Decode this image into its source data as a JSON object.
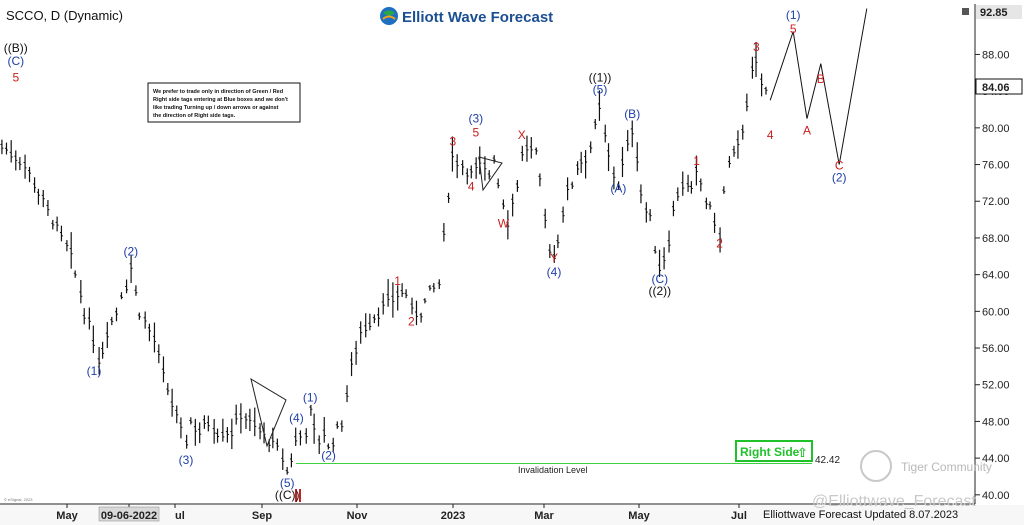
{
  "header": {
    "symbol": "SCCO, D (Dynamic)"
  },
  "brand": {
    "name": "Elliott Wave Forecast"
  },
  "note": {
    "lines": [
      "We prefer to trade only in direction of Green / Red",
      "Right side tags entering at Blue boxes and we don't",
      "like trading Turning up / down arrows or against",
      "the direction of Right side tags."
    ]
  },
  "price_tags": {
    "high": "92.85",
    "last": "84.06",
    "invalidation": "42.42"
  },
  "invalidation_label": "Invalidation Level",
  "right_side": {
    "label": "Right Side",
    "arrow": "⇧"
  },
  "footer": {
    "updated": "Elliottwave Forecast Updated 8.07.2023",
    "watermark": "@Elliottwave_Forecast",
    "community": "Tiger Community",
    "esignal": "© eSignal, 2023"
  },
  "colors": {
    "blue": "#1f3fa8",
    "red": "#c8201e",
    "green": "#1fc22a",
    "price": "#111111"
  },
  "chart_data": {
    "type": "ohlc-bar",
    "ylim": [
      39.0,
      93.5
    ],
    "yticks": [
      "40.00",
      "44.00",
      "48.00",
      "52.00",
      "56.00",
      "60.00",
      "64.00",
      "68.00",
      "72.00",
      "76.00",
      "80.00",
      "84.00",
      "88.00"
    ],
    "xticks": [
      "May",
      "09-06-2022",
      "ul",
      "Sep",
      "Nov",
      "2023",
      "Mar",
      "May",
      "Jul"
    ],
    "path": [
      [
        0,
        78
      ],
      [
        3,
        77
      ],
      [
        5,
        76
      ],
      [
        6,
        75
      ],
      [
        8,
        73
      ],
      [
        9,
        72
      ],
      [
        11,
        70
      ],
      [
        12,
        69
      ],
      [
        13,
        68
      ],
      [
        15,
        66
      ],
      [
        16,
        64
      ],
      [
        18,
        60
      ],
      [
        20,
        57
      ],
      [
        21,
        55
      ],
      [
        22,
        56
      ],
      [
        23,
        58
      ],
      [
        25,
        60
      ],
      [
        26,
        62
      ],
      [
        27,
        63
      ],
      [
        28,
        65
      ],
      [
        29,
        62
      ],
      [
        30,
        60
      ],
      [
        31,
        59
      ],
      [
        33,
        57
      ],
      [
        35,
        53
      ],
      [
        37,
        50
      ],
      [
        39,
        47
      ],
      [
        40,
        46
      ],
      [
        41,
        48
      ],
      [
        43,
        47
      ],
      [
        45,
        48
      ],
      [
        47,
        47
      ],
      [
        50,
        47
      ],
      [
        52,
        49
      ],
      [
        54,
        48
      ],
      [
        56,
        47
      ],
      [
        58,
        46
      ],
      [
        60,
        45
      ],
      [
        61,
        44
      ],
      [
        62,
        42.5
      ],
      [
        63,
        44
      ],
      [
        64,
        46
      ],
      [
        66,
        47
      ],
      [
        67,
        49
      ],
      [
        68,
        47
      ],
      [
        69,
        46
      ],
      [
        70,
        47
      ],
      [
        71,
        45
      ],
      [
        72,
        46
      ],
      [
        73,
        47
      ],
      [
        74,
        48
      ],
      [
        75,
        51
      ],
      [
        76,
        54
      ],
      [
        77,
        56
      ],
      [
        78,
        58
      ],
      [
        80,
        59
      ],
      [
        82,
        60
      ],
      [
        84,
        61
      ],
      [
        86,
        62
      ],
      [
        88,
        62
      ],
      [
        89,
        60
      ],
      [
        91,
        60
      ],
      [
        93,
        62
      ],
      [
        95,
        63
      ],
      [
        96,
        68
      ],
      [
        97,
        73
      ],
      [
        98,
        77
      ],
      [
        100,
        76
      ],
      [
        102,
        75
      ],
      [
        104,
        76
      ],
      [
        106,
        75
      ],
      [
        107,
        77
      ],
      [
        108,
        74
      ],
      [
        109,
        72
      ],
      [
        110,
        70
      ],
      [
        111,
        72
      ],
      [
        112,
        74
      ],
      [
        113,
        77
      ],
      [
        114,
        78
      ],
      [
        116,
        77
      ],
      [
        117,
        74
      ],
      [
        118,
        70
      ],
      [
        119,
        67
      ],
      [
        120,
        66
      ],
      [
        121,
        68
      ],
      [
        122,
        71
      ],
      [
        123,
        73
      ],
      [
        124,
        74
      ],
      [
        125,
        76
      ],
      [
        127,
        77
      ],
      [
        128,
        78
      ],
      [
        129,
        80
      ],
      [
        130,
        82
      ],
      [
        131,
        79
      ],
      [
        132,
        77
      ],
      [
        133,
        75
      ],
      [
        134,
        74
      ],
      [
        135,
        76
      ],
      [
        136,
        78
      ],
      [
        137,
        80
      ],
      [
        138,
        77
      ],
      [
        139,
        73
      ],
      [
        140,
        71
      ],
      [
        141,
        70
      ],
      [
        142,
        67
      ],
      [
        143,
        65
      ],
      [
        144,
        66
      ],
      [
        145,
        68
      ],
      [
        146,
        71
      ],
      [
        147,
        73
      ],
      [
        148,
        74
      ],
      [
        150,
        73
      ],
      [
        151,
        75
      ],
      [
        152,
        74
      ],
      [
        153,
        72
      ],
      [
        154,
        71
      ],
      [
        155,
        70
      ],
      [
        156,
        68
      ],
      [
        157,
        73
      ],
      [
        158,
        76
      ],
      [
        159,
        77
      ],
      [
        160,
        78
      ],
      [
        161,
        80
      ],
      [
        162,
        83
      ],
      [
        163,
        86
      ],
      [
        164,
        87
      ],
      [
        165,
        85
      ],
      [
        166,
        84
      ],
      [
        167,
        83
      ]
    ],
    "waves": [
      {
        "t": "((B))",
        "i": 3,
        "p": 88.7,
        "c": "black"
      },
      {
        "t": "(C)",
        "i": 3,
        "p": 87.3,
        "c": "blue"
      },
      {
        "t": "5",
        "i": 3,
        "p": 85.5,
        "c": "red"
      },
      {
        "t": "(2)",
        "i": 28,
        "p": 66.5,
        "c": "blue"
      },
      {
        "t": "(1)",
        "i": 20,
        "p": 53.5,
        "c": "blue"
      },
      {
        "t": "(3)",
        "i": 40,
        "p": 43.8,
        "c": "blue"
      },
      {
        "t": "(4)",
        "i": 64,
        "p": 48.4,
        "c": "blue"
      },
      {
        "t": "(5)",
        "i": 62,
        "p": 41.3,
        "c": "blue"
      },
      {
        "t": "((C))",
        "i": 62,
        "p": 40.0,
        "c": "black"
      },
      {
        "t": "(1)",
        "i": 67,
        "p": 50.6,
        "c": "blue"
      },
      {
        "t": "(2)",
        "i": 71,
        "p": 44.3,
        "c": "blue"
      },
      {
        "t": "1",
        "i": 86,
        "p": 63.3,
        "c": "red"
      },
      {
        "t": "2",
        "i": 89,
        "p": 58.9,
        "c": "red"
      },
      {
        "t": "3",
        "i": 98,
        "p": 78.5,
        "c": "red"
      },
      {
        "t": "5",
        "i": 103,
        "p": 79.5,
        "c": "red"
      },
      {
        "t": "(3)",
        "i": 103,
        "p": 81.0,
        "c": "blue"
      },
      {
        "t": "4",
        "i": 102,
        "p": 73.6,
        "c": "red"
      },
      {
        "t": "W",
        "i": 109,
        "p": 69.6,
        "c": "red"
      },
      {
        "t": "X",
        "i": 113,
        "p": 79.2,
        "c": "red"
      },
      {
        "t": "Y",
        "i": 120,
        "p": 65.8,
        "c": "red"
      },
      {
        "t": "(4)",
        "i": 120,
        "p": 64.3,
        "c": "blue"
      },
      {
        "t": "((1))",
        "i": 130,
        "p": 85.5,
        "c": "black"
      },
      {
        "t": "(5)",
        "i": 130,
        "p": 84.2,
        "c": "blue"
      },
      {
        "t": "(B)",
        "i": 137,
        "p": 81.5,
        "c": "blue"
      },
      {
        "t": "(A)",
        "i": 134,
        "p": 73.4,
        "c": "blue"
      },
      {
        "t": "(C)",
        "i": 143,
        "p": 63.5,
        "c": "blue"
      },
      {
        "t": "((2))",
        "i": 143,
        "p": 62.2,
        "c": "black"
      },
      {
        "t": "1",
        "i": 151,
        "p": 76.4,
        "c": "red"
      },
      {
        "t": "2",
        "i": 156,
        "p": 67.4,
        "c": "red"
      },
      {
        "t": "3",
        "i": 164,
        "p": 88.8,
        "c": "red"
      }
    ],
    "projection": {
      "points": [
        [
          167,
          83
        ],
        [
          172,
          90.5
        ],
        [
          175,
          81
        ],
        [
          178,
          87
        ],
        [
          182,
          76
        ],
        [
          188,
          93
        ]
      ],
      "labels": [
        {
          "t": "4",
          "i": 167,
          "p": 79.2,
          "c": "red"
        },
        {
          "t": "(1)",
          "i": 172,
          "p": 92.3,
          "c": "blue"
        },
        {
          "t": "5",
          "i": 172,
          "p": 90.8,
          "c": "red"
        },
        {
          "t": "A",
          "i": 175,
          "p": 79.7,
          "c": "red"
        },
        {
          "t": "B",
          "i": 178,
          "p": 85.3,
          "c": "red"
        },
        {
          "t": "C",
          "i": 182,
          "p": 75.9,
          "c": "red"
        },
        {
          "t": "(2)",
          "i": 182,
          "p": 74.6,
          "c": "blue"
        }
      ]
    }
  }
}
